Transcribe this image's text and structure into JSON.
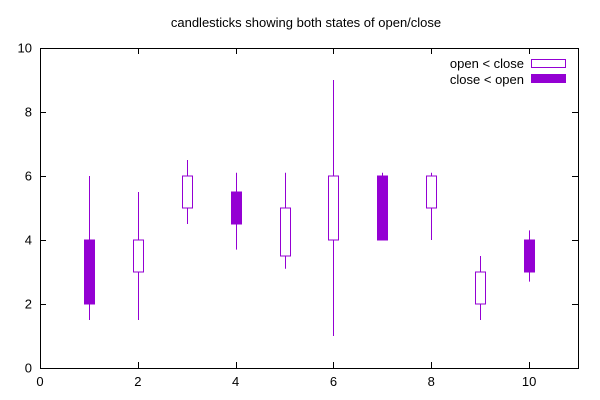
{
  "chart_data": {
    "type": "candlestick",
    "title": "candlesticks showing both states of open/close",
    "xlabel": "",
    "ylabel": "",
    "xlim": [
      0,
      11
    ],
    "ylim": [
      0,
      10
    ],
    "xticks": [
      "0",
      "2",
      "4",
      "6",
      "8",
      "10"
    ],
    "yticks": [
      "0",
      "2",
      "4",
      "6",
      "8",
      "10"
    ],
    "grid": false,
    "legend_position": "top-right",
    "color": "#9400d3",
    "legend": [
      {
        "label": "open < close",
        "style": "hollow"
      },
      {
        "label": "close < open",
        "style": "filled"
      }
    ],
    "candles": [
      {
        "x": 1,
        "open": 4.0,
        "close": 2.0,
        "low": 1.5,
        "high": 6.0
      },
      {
        "x": 2,
        "open": 3.0,
        "close": 4.0,
        "low": 1.5,
        "high": 5.5
      },
      {
        "x": 3,
        "open": 5.0,
        "close": 6.0,
        "low": 4.5,
        "high": 6.5
      },
      {
        "x": 4,
        "open": 5.5,
        "close": 4.5,
        "low": 3.7,
        "high": 6.1
      },
      {
        "x": 5,
        "open": 3.5,
        "close": 5.0,
        "low": 3.1,
        "high": 6.1
      },
      {
        "x": 6,
        "open": 4.0,
        "close": 6.0,
        "low": 1.0,
        "high": 9.0
      },
      {
        "x": 7,
        "open": 6.0,
        "close": 4.0,
        "low": 4.0,
        "high": 6.1
      },
      {
        "x": 8,
        "open": 5.0,
        "close": 6.0,
        "low": 4.0,
        "high": 6.1
      },
      {
        "x": 9,
        "open": 2.0,
        "close": 3.0,
        "low": 1.5,
        "high": 3.5
      },
      {
        "x": 10,
        "open": 4.0,
        "close": 3.0,
        "low": 2.7,
        "high": 4.3
      }
    ]
  }
}
